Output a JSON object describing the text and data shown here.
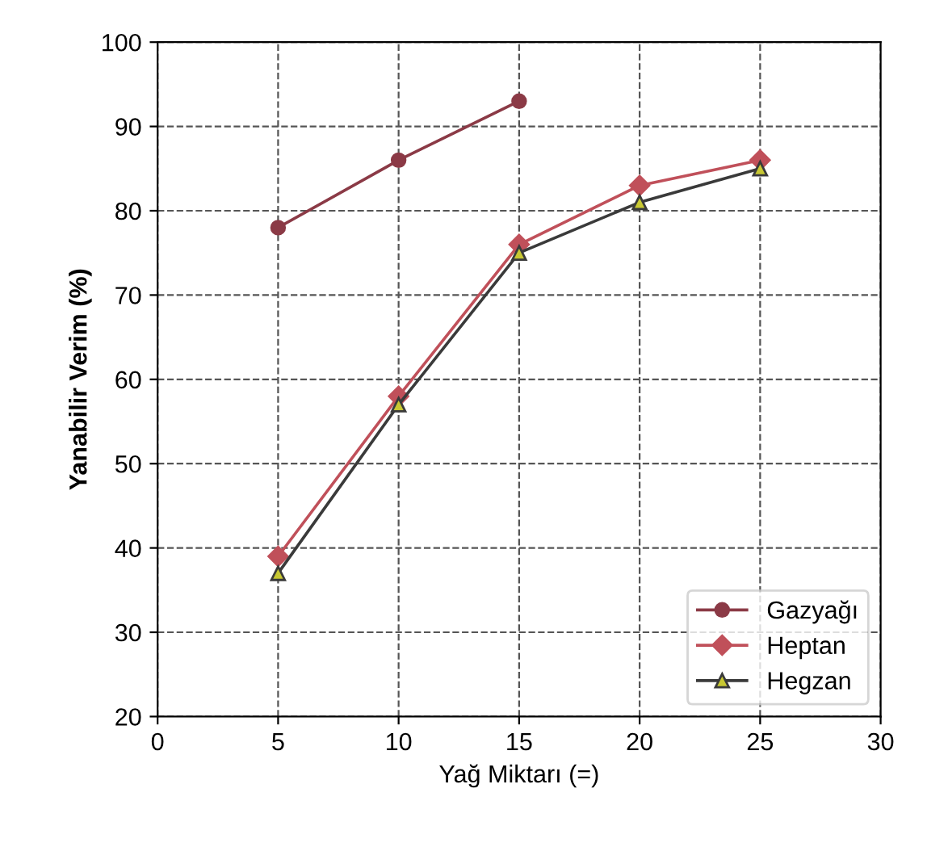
{
  "chart_data": {
    "type": "line",
    "xlabel": "Yağ Miktarı (=)",
    "ylabel": "Yanabilir Verim (%)",
    "xlim": [
      0,
      30
    ],
    "xticks": [
      0,
      5,
      10,
      15,
      20,
      25,
      30
    ],
    "ylim": [
      20,
      100
    ],
    "yticks": [
      20,
      30,
      40,
      50,
      60,
      70,
      80,
      90,
      100
    ],
    "grid": true,
    "legend": "right",
    "series": [
      {
        "name": "Gazyağı",
        "color": "#8b3a46",
        "x": [
          5,
          10,
          15
        ],
        "values": [
          78,
          86,
          93
        ],
        "marker": "circle"
      },
      {
        "name": "Heptan",
        "color": "#c0505a",
        "x": [
          5,
          10,
          15,
          20,
          25
        ],
        "values": [
          39,
          58,
          76,
          83,
          86
        ],
        "marker": "diamond"
      },
      {
        "name": "Hegzan",
        "color": "#3a3a3a",
        "x": [
          5,
          10,
          15,
          20,
          25
        ],
        "values": [
          37,
          57,
          75,
          81,
          85
        ],
        "marker": "triangle"
      }
    ]
  }
}
